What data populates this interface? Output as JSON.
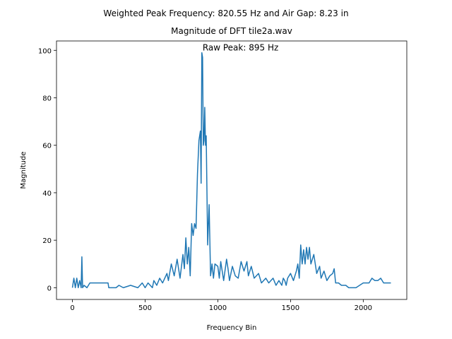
{
  "chart_data": {
    "type": "line",
    "suptitle": "Weighted Peak Frequency: 820.55 Hz and Air Gap: 8.23 in",
    "title": "Magnitude of DFT tile2a.wav",
    "x_label": "Frequency Bin",
    "y_label": "Magnitude",
    "annotation": {
      "text": "Raw Peak: 895 Hz",
      "x": 895,
      "y": 99
    },
    "xlim": [
      -109.5,
      2299.5
    ],
    "ylim": [
      -4.95,
      103.95
    ],
    "xticks": [
      0,
      500,
      1000,
      1500,
      2000
    ],
    "yticks": [
      0,
      20,
      40,
      60,
      80,
      100
    ],
    "x": [
      0,
      10,
      20,
      30,
      40,
      50,
      60,
      65,
      70,
      80,
      100,
      120,
      150,
      200,
      245,
      250,
      300,
      320,
      350,
      400,
      450,
      480,
      500,
      520,
      550,
      560,
      580,
      600,
      620,
      650,
      660,
      680,
      700,
      720,
      740,
      760,
      770,
      780,
      790,
      800,
      810,
      820,
      830,
      840,
      850,
      860,
      870,
      880,
      885,
      890,
      895,
      900,
      905,
      910,
      915,
      920,
      930,
      940,
      950,
      960,
      970,
      980,
      1000,
      1010,
      1020,
      1040,
      1060,
      1070,
      1080,
      1100,
      1120,
      1140,
      1160,
      1180,
      1200,
      1210,
      1230,
      1250,
      1280,
      1300,
      1330,
      1350,
      1380,
      1400,
      1420,
      1440,
      1450,
      1460,
      1470,
      1480,
      1500,
      1520,
      1540,
      1550,
      1560,
      1570,
      1580,
      1590,
      1600,
      1610,
      1620,
      1630,
      1640,
      1660,
      1680,
      1700,
      1710,
      1730,
      1750,
      1770,
      1790,
      1800,
      1810,
      1830,
      1850,
      1880,
      1900,
      1950,
      2000,
      2040,
      2060,
      2080,
      2100,
      2120,
      2140,
      2190
    ],
    "series": [
      {
        "name": "DFT",
        "color": "#1f77b4",
        "values": [
          0,
          4,
          0,
          4,
          0,
          3,
          0,
          13,
          0,
          1,
          0,
          2,
          2,
          2,
          2,
          0,
          0,
          1,
          0,
          1,
          0,
          2,
          0,
          2,
          0,
          3,
          1,
          4,
          2,
          6,
          3,
          10,
          5,
          12,
          4,
          14,
          8,
          21,
          10,
          17,
          5,
          27,
          22,
          27,
          25,
          48,
          62,
          66,
          44,
          99,
          97,
          60,
          62,
          76,
          60,
          64,
          18,
          35,
          5,
          10,
          4,
          10,
          9,
          4,
          11,
          3,
          12,
          8,
          3,
          9,
          5,
          4,
          11,
          7,
          11,
          5,
          9,
          4,
          6,
          2,
          4,
          2,
          4,
          1,
          3,
          1,
          4,
          3,
          1,
          4,
          6,
          3,
          7,
          10,
          4,
          18,
          10,
          16,
          10,
          17,
          12,
          17,
          10,
          14,
          6,
          9,
          4,
          7,
          3,
          5,
          6,
          8,
          2,
          2,
          1,
          1,
          0,
          0,
          2,
          2,
          4,
          3,
          3,
          4,
          2,
          2
        ]
      }
    ]
  }
}
